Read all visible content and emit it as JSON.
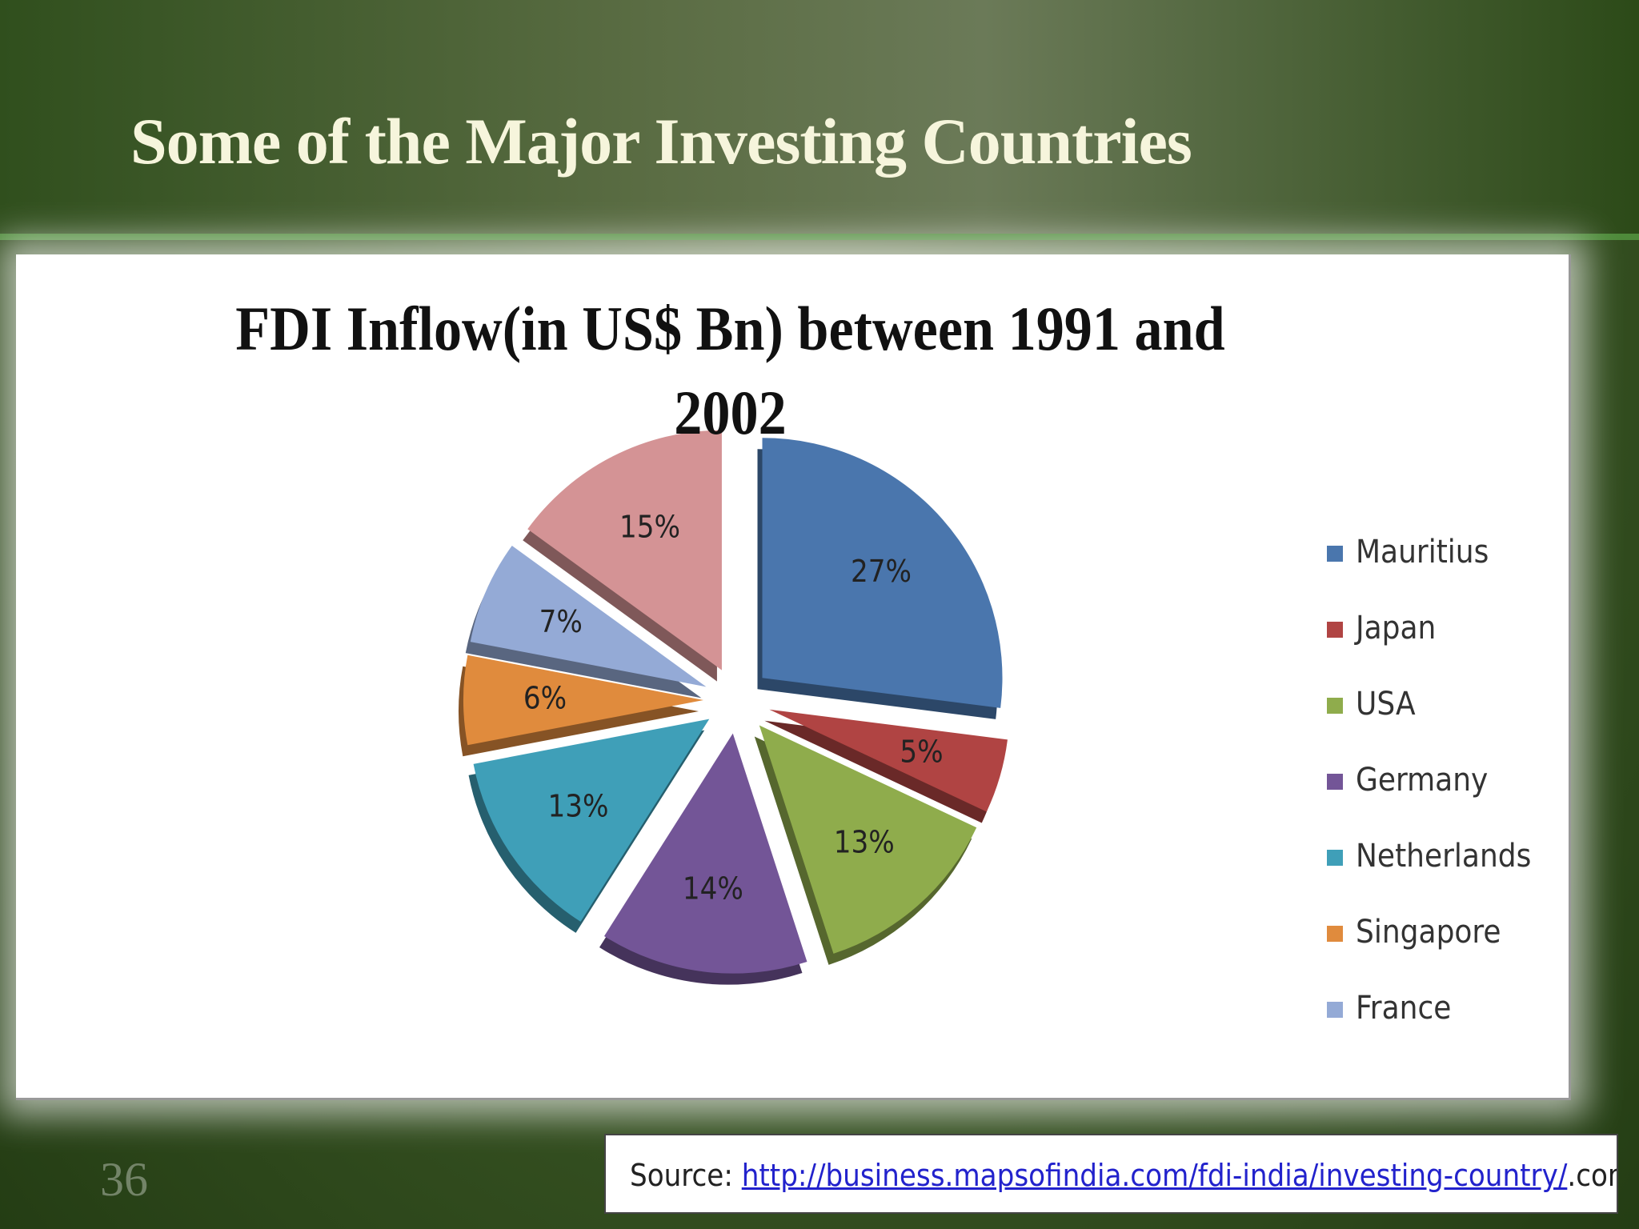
{
  "slide_title": "Some of the Major Investing Countries",
  "chart_data": {
    "type": "pie",
    "title": "FDI Inflow(in US$ Bn) between 1991 and 2002",
    "categories": [
      "Mauritius",
      "Japan",
      "USA",
      "Germany",
      "Netherlands",
      "Singapore",
      "France",
      null
    ],
    "values": [
      27,
      5,
      13,
      14,
      13,
      6,
      7,
      15
    ],
    "value_labels": [
      "27%",
      "5%",
      "13%",
      "14%",
      "13%",
      "6%",
      "7%",
      "15%"
    ],
    "colors": [
      "#4a76ad",
      "#b04443",
      "#8fac4c",
      "#735597",
      "#3f9fb8",
      "#e08b3d",
      "#94aad6",
      "#d49395"
    ],
    "legend": "right"
  },
  "source": {
    "label": "Source:",
    "url": "http://business.mapsofindia.com/fdi-india/investing-country/",
    "suffix": ".com"
  },
  "slide_number": "36"
}
